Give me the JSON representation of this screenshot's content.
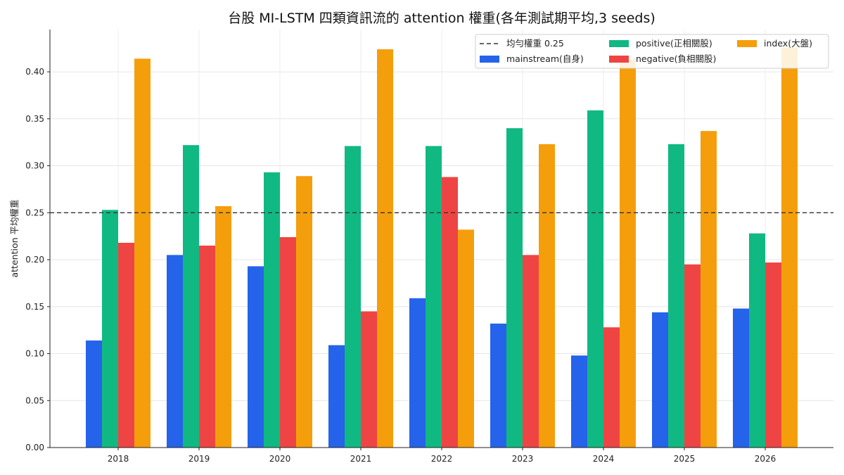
{
  "chart_data": {
    "type": "bar",
    "title": "台股 MI-LSTM 四類資訊流的 attention 權重(各年測試期平均,3 seeds)",
    "xlabel": "",
    "ylabel": "attention 平均權重",
    "categories": [
      "2018",
      "2019",
      "2020",
      "2021",
      "2022",
      "2023",
      "2024",
      "2025",
      "2026"
    ],
    "ylim": [
      0,
      0.445
    ],
    "yticks": [
      "0.00",
      "0.05",
      "0.10",
      "0.15",
      "0.20",
      "0.25",
      "0.30",
      "0.35",
      "0.40"
    ],
    "grid": true,
    "legend_position": "top-right",
    "reference_line": {
      "label": "均勻權重 0.25",
      "value": 0.25,
      "color": "#333333"
    },
    "series": [
      {
        "name": "mainstream(自身)",
        "color": "#2563eb",
        "values": [
          0.114,
          0.205,
          0.193,
          0.109,
          0.159,
          0.132,
          0.098,
          0.144,
          0.148
        ]
      },
      {
        "name": "positive(正相關股)",
        "color": "#10b981",
        "values": [
          0.253,
          0.322,
          0.293,
          0.321,
          0.321,
          0.34,
          0.359,
          0.323,
          0.228
        ]
      },
      {
        "name": "negative(負相關股)",
        "color": "#ef4444",
        "values": [
          0.218,
          0.215,
          0.224,
          0.145,
          0.288,
          0.205,
          0.128,
          0.195,
          0.197
        ]
      },
      {
        "name": "index(大盤)",
        "color": "#f59e0b",
        "values": [
          0.414,
          0.257,
          0.289,
          0.424,
          0.232,
          0.323,
          0.413,
          0.337,
          0.426
        ]
      }
    ]
  }
}
